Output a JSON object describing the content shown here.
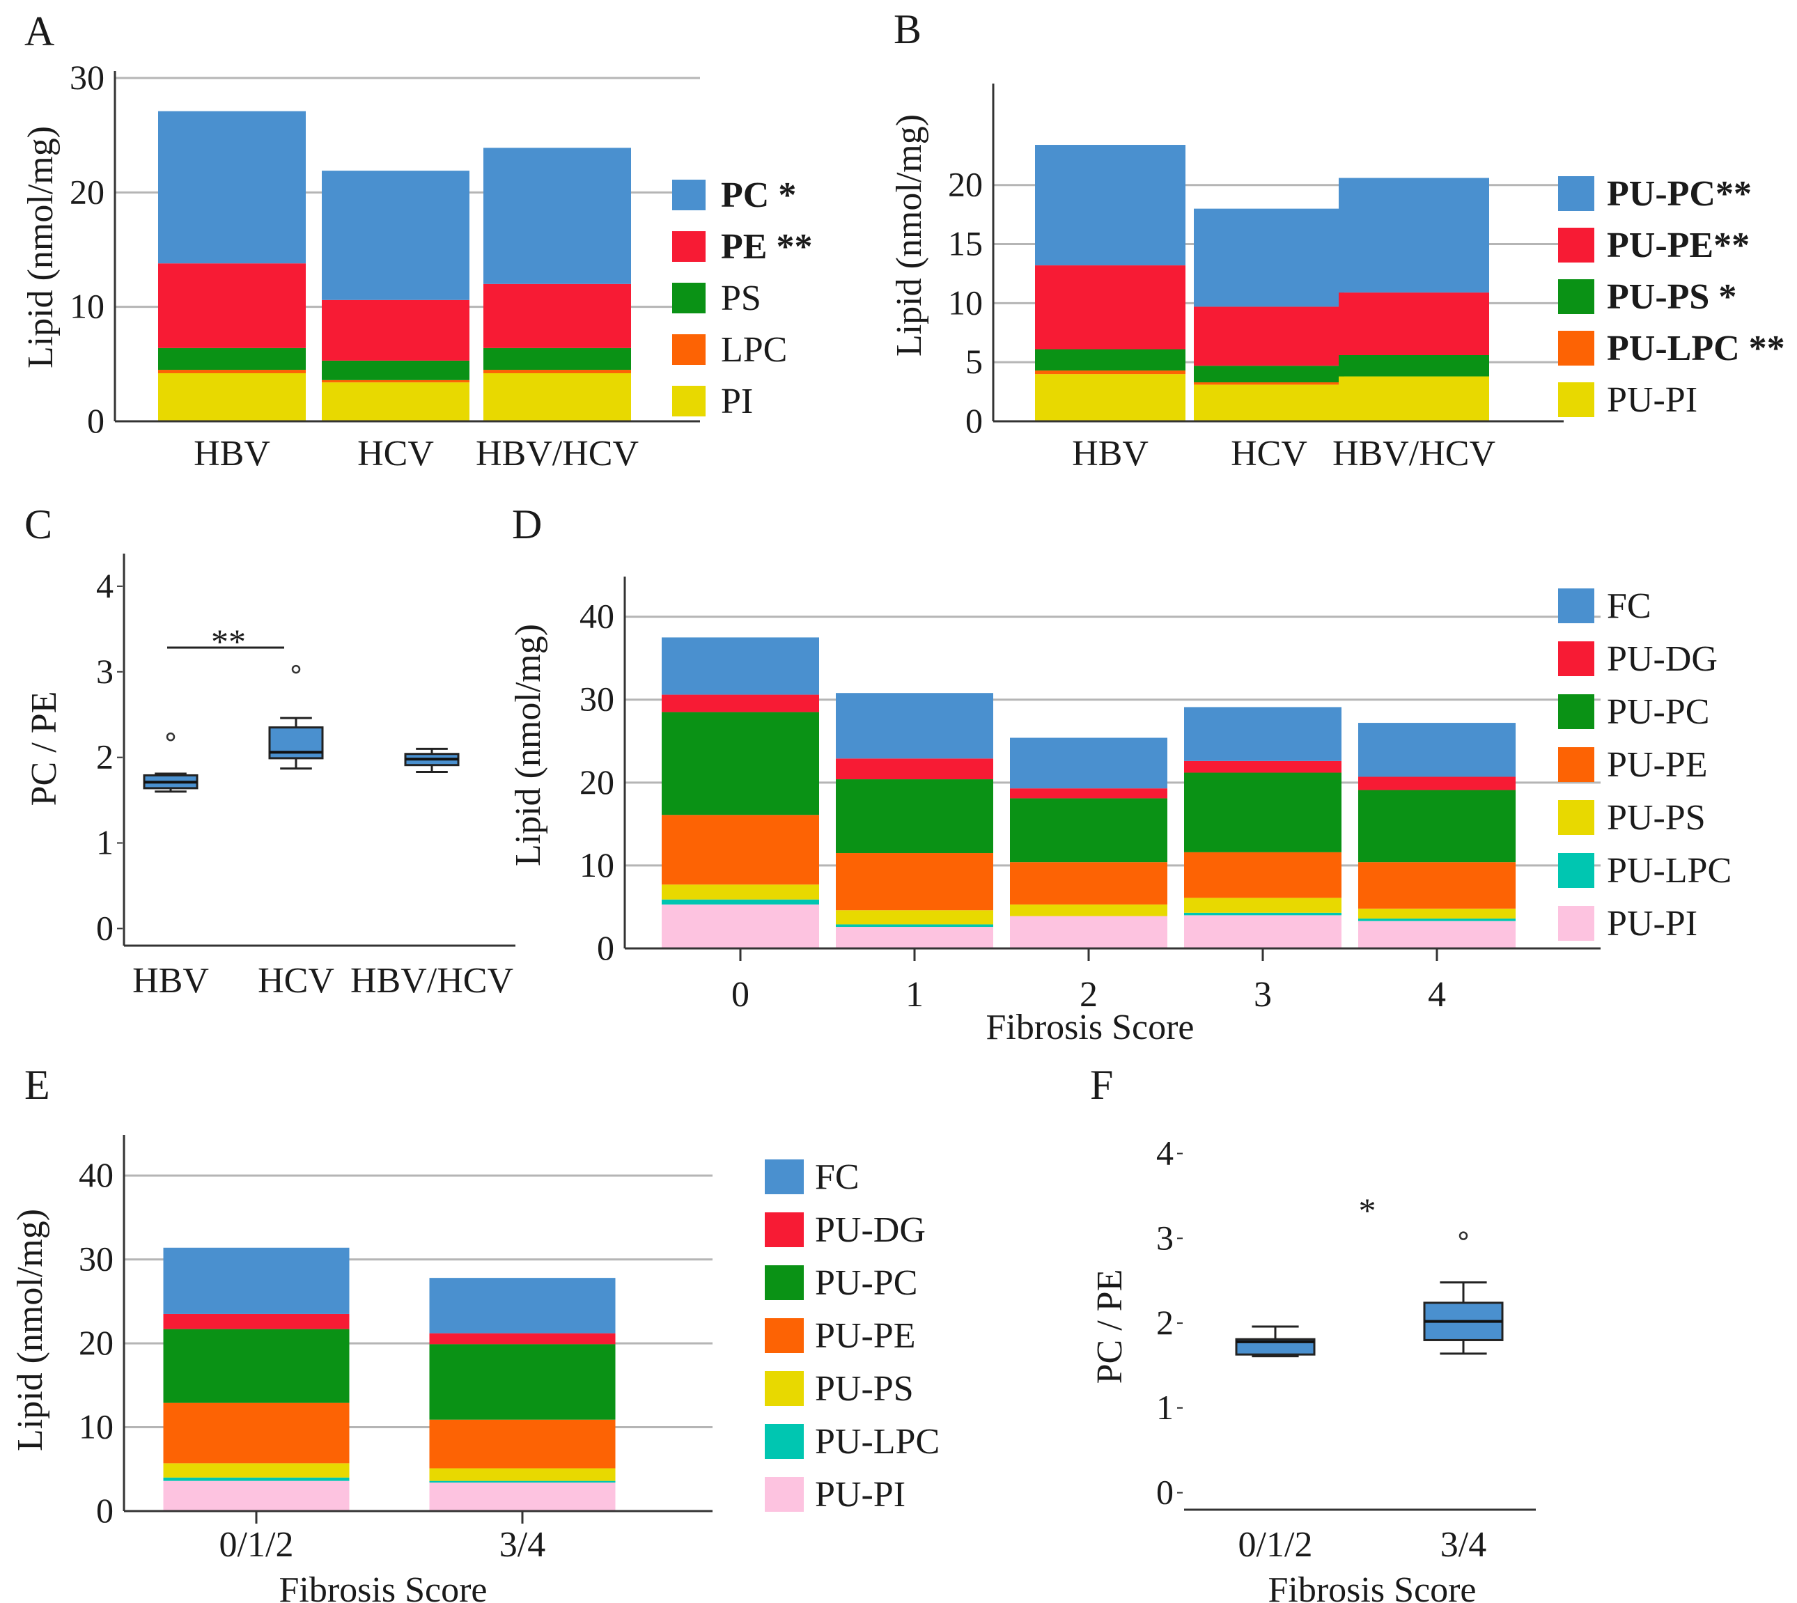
{
  "figure": {
    "colors": {
      "blue": "#4a90cf",
      "red": "#f71b34",
      "green": "#0a9215",
      "orange": "#fd6304",
      "yellow": "#e8d900",
      "teal": "#00c6b1",
      "pink": "#fdc3e0",
      "grid": "#b5b5b5",
      "axis": "#333333",
      "box": "#4a90cf"
    }
  },
  "chart_data": [
    {
      "panel": "A",
      "type": "bar",
      "stacked": true,
      "categories": [
        "HBV",
        "HCV",
        "HBV/HCV"
      ],
      "ylabel": "Lipid (nmol/mg)",
      "xlabel": "",
      "ylim": [
        0,
        30
      ],
      "yticks": [
        "0",
        "10",
        "20",
        "30"
      ],
      "grid": true,
      "legend_position": "right",
      "series": [
        {
          "name": "PI",
          "label": "PI",
          "color": "yellow",
          "bold": false,
          "values": [
            4.2,
            3.4,
            4.2
          ]
        },
        {
          "name": "LPC",
          "label": "LPC",
          "color": "orange",
          "bold": false,
          "values": [
            0.3,
            0.2,
            0.3
          ]
        },
        {
          "name": "PS",
          "label": "PS",
          "color": "green",
          "bold": false,
          "values": [
            1.9,
            1.7,
            1.9
          ]
        },
        {
          "name": "PE",
          "label": "PE **",
          "color": "red",
          "bold": true,
          "values": [
            7.4,
            5.3,
            5.6
          ]
        },
        {
          "name": "PC",
          "label": "PC *",
          "color": "blue",
          "bold": true,
          "values": [
            13.3,
            11.3,
            11.9
          ]
        }
      ]
    },
    {
      "panel": "B",
      "type": "bar",
      "stacked": true,
      "categories": [
        "HBV",
        "HCV",
        "HBV/HCV"
      ],
      "ylabel": "Lipid (nmol/mg)",
      "xlabel": "",
      "ylim": [
        0,
        28
      ],
      "yticks": [
        "0",
        "5",
        "10",
        "15",
        "20"
      ],
      "grid": true,
      "legend_position": "right",
      "series": [
        {
          "name": "PU-PI",
          "label": "PU-PI",
          "color": "yellow",
          "bold": false,
          "values": [
            4.0,
            3.1,
            3.8
          ]
        },
        {
          "name": "PU-LPC",
          "label": "PU-LPC **",
          "color": "orange",
          "bold": true,
          "values": [
            0.3,
            0.2,
            0.0
          ]
        },
        {
          "name": "PU-PS",
          "label": "PU-PS *",
          "color": "green",
          "bold": true,
          "values": [
            1.8,
            1.4,
            1.8
          ]
        },
        {
          "name": "PU-PE",
          "label": "PU-PE**",
          "color": "red",
          "bold": true,
          "values": [
            7.1,
            5.0,
            5.3
          ]
        },
        {
          "name": "PU-PC",
          "label": "PU-PC**",
          "color": "blue",
          "bold": true,
          "values": [
            10.2,
            8.3,
            9.7
          ]
        }
      ]
    },
    {
      "panel": "C",
      "type": "box",
      "categories": [
        "HBV",
        "HCV",
        "HBV/HCV"
      ],
      "ylabel": "PC / PE",
      "xlabel": "",
      "ylim": [
        -0.2,
        4.3
      ],
      "yticks": [
        "0",
        "1",
        "2",
        "3",
        "4"
      ],
      "grid": false,
      "boxes": [
        {
          "min": 1.6,
          "q1": 1.64,
          "median": 1.71,
          "q3": 1.79,
          "max": 1.81,
          "outliers": [
            2.24
          ]
        },
        {
          "min": 1.87,
          "q1": 1.99,
          "median": 2.06,
          "q3": 2.35,
          "max": 2.46,
          "outliers": [
            3.03
          ]
        },
        {
          "min": 1.83,
          "q1": 1.91,
          "median": 1.98,
          "q3": 2.04,
          "max": 2.1,
          "outliers": []
        }
      ],
      "significance": [
        {
          "from": "HBV",
          "to": "HCV",
          "label": "**"
        }
      ]
    },
    {
      "panel": "D",
      "type": "bar",
      "stacked": true,
      "categories": [
        "0",
        "1",
        "2",
        "3",
        "4"
      ],
      "ylabel": "Lipid (nmol/mg)",
      "xlabel": "Fibrosis Score",
      "ylim": [
        0,
        44
      ],
      "yticks": [
        "0",
        "10",
        "20",
        "30",
        "40"
      ],
      "grid": true,
      "legend_position": "right",
      "series": [
        {
          "name": "PU-PI",
          "label": "PU-PI",
          "color": "pink",
          "values": [
            5.3,
            2.6,
            3.9,
            4.0,
            3.3
          ]
        },
        {
          "name": "PU-LPC",
          "label": "PU-LPC",
          "color": "teal",
          "values": [
            0.6,
            0.3,
            0.0,
            0.3,
            0.3
          ]
        },
        {
          "name": "PU-PS",
          "label": "PU-PS",
          "color": "yellow",
          "values": [
            1.8,
            1.7,
            1.4,
            1.8,
            1.2
          ]
        },
        {
          "name": "PU-PE",
          "label": "PU-PE",
          "color": "orange",
          "values": [
            8.4,
            6.9,
            5.1,
            5.5,
            5.6
          ]
        },
        {
          "name": "PU-PC",
          "label": "PU-PC",
          "color": "green",
          "values": [
            12.4,
            8.9,
            7.7,
            9.6,
            8.7
          ]
        },
        {
          "name": "PU-DG",
          "label": "PU-DG",
          "color": "red",
          "values": [
            2.1,
            2.5,
            1.2,
            1.4,
            1.6
          ]
        },
        {
          "name": "FC",
          "label": "FC",
          "color": "blue",
          "values": [
            6.9,
            7.9,
            6.1,
            6.5,
            6.5
          ]
        }
      ]
    },
    {
      "panel": "E",
      "type": "bar",
      "stacked": true,
      "categories": [
        "0/1/2",
        "3/4"
      ],
      "ylabel": "Lipid (nmol/mg)",
      "xlabel": "Fibrosis Score",
      "ylim": [
        0,
        44
      ],
      "yticks": [
        "0",
        "10",
        "20",
        "30",
        "40"
      ],
      "grid": true,
      "legend_position": "right",
      "series": [
        {
          "name": "PU-PI",
          "label": "PU-PI",
          "color": "pink",
          "values": [
            3.6,
            3.4
          ]
        },
        {
          "name": "PU-LPC",
          "label": "PU-LPC",
          "color": "teal",
          "values": [
            0.4,
            0.2
          ]
        },
        {
          "name": "PU-PS",
          "label": "PU-PS",
          "color": "yellow",
          "values": [
            1.7,
            1.5
          ]
        },
        {
          "name": "PU-PE",
          "label": "PU-PE",
          "color": "orange",
          "values": [
            7.2,
            5.8
          ]
        },
        {
          "name": "PU-PC",
          "label": "PU-PC",
          "color": "green",
          "values": [
            8.8,
            9.0
          ]
        },
        {
          "name": "PU-DG",
          "label": "PU-DG",
          "color": "red",
          "values": [
            1.8,
            1.3
          ]
        },
        {
          "name": "FC",
          "label": "FC",
          "color": "blue",
          "values": [
            7.9,
            6.6
          ]
        }
      ]
    },
    {
      "panel": "F",
      "type": "box",
      "categories": [
        "0/1/2",
        "3/4"
      ],
      "ylabel": "PC / PE",
      "xlabel": "Fibrosis Score",
      "ylim": [
        -0.2,
        4.3
      ],
      "yticks": [
        "0",
        "1",
        "2",
        "3",
        "4"
      ],
      "grid": false,
      "boxes": [
        {
          "min": 1.61,
          "q1": 1.63,
          "median": 1.78,
          "q3": 1.81,
          "max": 1.96,
          "outliers": []
        },
        {
          "min": 1.64,
          "q1": 1.8,
          "median": 2.02,
          "q3": 2.24,
          "max": 2.48,
          "outliers": [
            3.03
          ]
        }
      ],
      "significance": [
        {
          "from": "0/1/2",
          "to": "3/4",
          "label": "*"
        }
      ]
    }
  ]
}
